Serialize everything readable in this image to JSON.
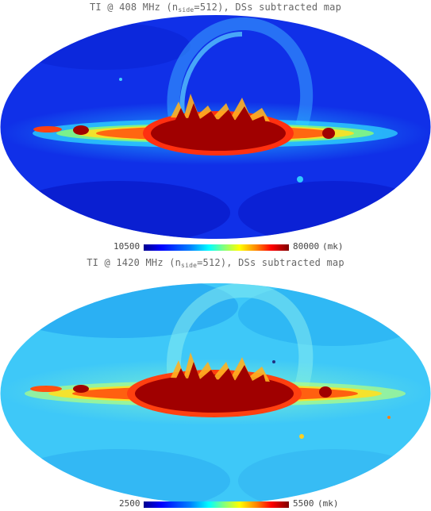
{
  "maps": [
    {
      "title_prefix": "TI @ 408 MHz (n",
      "title_sub": "side",
      "title_suffix": "=512), DSs subtracted map",
      "colorbar": {
        "min": "10500",
        "max": "80000",
        "unit": "(mk)"
      },
      "background_color": "#1030e8"
    },
    {
      "title_prefix": "TI @ 1420 MHz (n",
      "title_sub": "side",
      "title_suffix": "=512), DSs subtracted map",
      "colorbar": {
        "min": "2500",
        "max": "5500",
        "unit": "(mk)"
      },
      "background_color": "#3ec8f8"
    }
  ]
}
